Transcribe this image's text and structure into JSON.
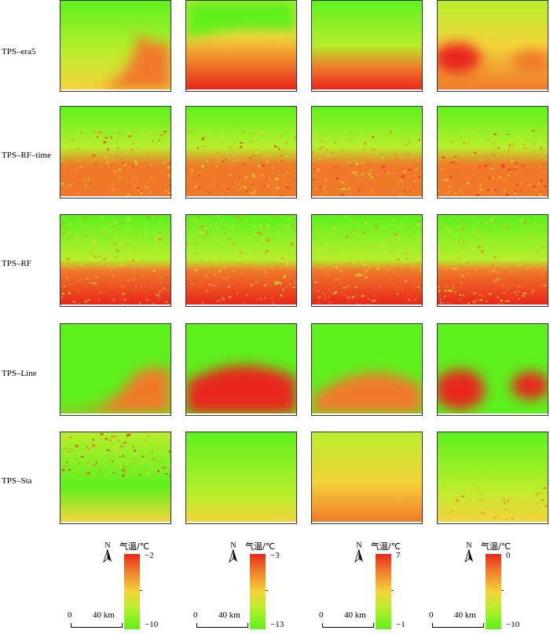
{
  "rows": [
    {
      "label": "TPS–era5",
      "patterns": [
        "era5a",
        "era5b",
        "era5c",
        "era5d"
      ]
    },
    {
      "label": "TPS–RF–time",
      "patterns": [
        "rft",
        "rft",
        "rft",
        "rft"
      ]
    },
    {
      "label": "TPS–RF",
      "patterns": [
        "rf",
        "rf",
        "rf",
        "rf"
      ]
    },
    {
      "label": "TPS–Line",
      "patterns": [
        "linea",
        "lineb",
        "linec",
        "lined"
      ]
    },
    {
      "label": "TPS–Sta",
      "patterns": [
        "staa",
        "stab",
        "stac",
        "stad"
      ]
    }
  ],
  "legends": [
    {
      "north": "N",
      "title": "气温/℃",
      "max": "−2",
      "min": "−10",
      "scale_zero": "0",
      "scale_dist": "40 km"
    },
    {
      "north": "N",
      "title": "气温/℃",
      "max": "−3",
      "min": "−13",
      "scale_zero": "0",
      "scale_dist": "40 km"
    },
    {
      "north": "N",
      "title": "气温/℃",
      "max": "7",
      "min": "−1",
      "scale_zero": "0",
      "scale_dist": "40 km"
    },
    {
      "north": "N",
      "title": "气温/℃",
      "max": "0",
      "min": "−10",
      "scale_zero": "0",
      "scale_dist": "40 km"
    }
  ],
  "colors": {
    "warm": "#e8261b",
    "mid": "#f4d43a",
    "cool": "#5ef01e"
  }
}
